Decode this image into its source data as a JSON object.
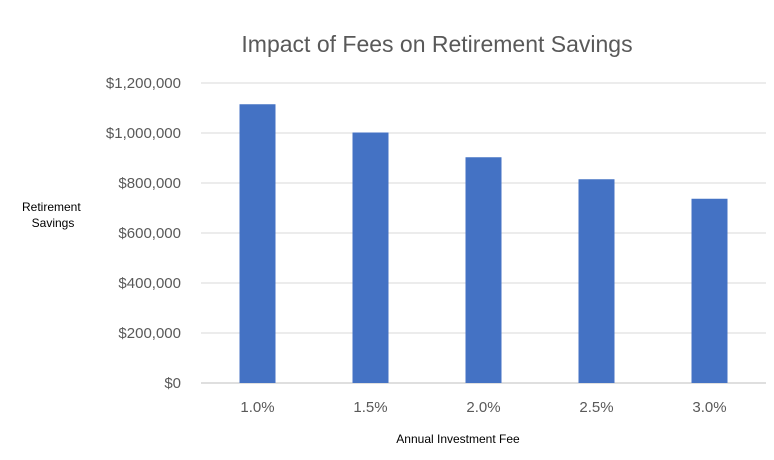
{
  "chart_data": {
    "type": "bar",
    "title": "Impact of Fees on Retirement Savings",
    "xlabel": "Annual Investment Fee",
    "ylabel_lines": [
      "Retirement",
      "Savings"
    ],
    "categories": [
      "1.0%",
      "1.5%",
      "2.0%",
      "2.5%",
      "3.0%"
    ],
    "series": [
      {
        "values": [
          1115000,
          1002000,
          903000,
          815000,
          737000
        ]
      }
    ],
    "ylim": [
      0,
      1200000
    ],
    "y_ticks": [
      0,
      200000,
      400000,
      600000,
      800000,
      1000000,
      1200000
    ],
    "y_tick_labels": [
      "$0",
      "$200,000",
      "$400,000",
      "$600,000",
      "$800,000",
      "$1,000,000",
      "$1,200,000"
    ],
    "grid": true,
    "legend": "none",
    "colors": {
      "bar": "#4472C4",
      "grid": "#D9D9D9",
      "axis_line": "#BFBFBF",
      "tick_text": "#595959",
      "title_text": "#595959",
      "axis_title_text": "#000000"
    }
  }
}
